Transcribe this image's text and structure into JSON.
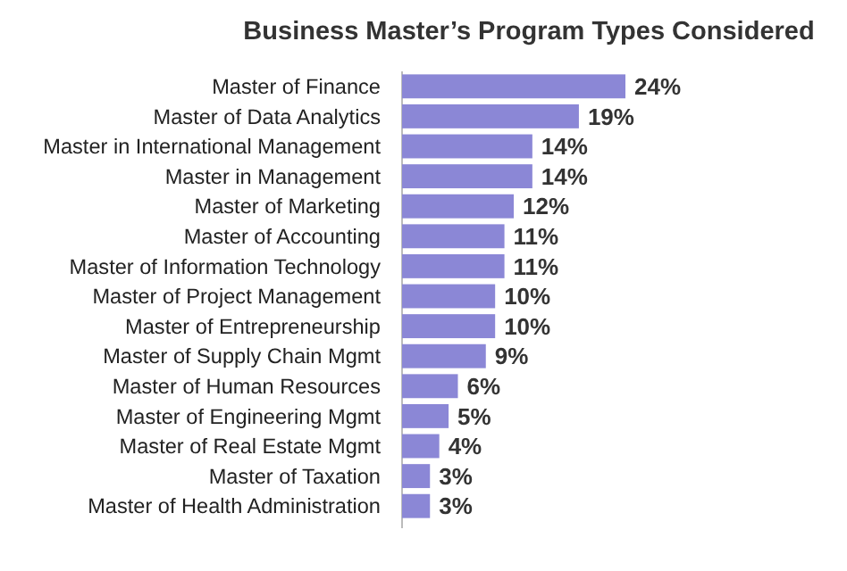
{
  "chart_data": {
    "type": "bar",
    "orientation": "horizontal",
    "title": "Business Master’s Program Types Considered",
    "categories": [
      "Master of Finance",
      "Master of Data Analytics",
      "Master in International Management",
      "Master in Management",
      "Master of Marketing",
      "Master of Accounting",
      "Master of Information Technology",
      "Master of Project Management",
      "Master of Entrepreneurship",
      "Master of Supply Chain Mgmt",
      "Master of Human Resources",
      "Master of Engineering Mgmt",
      "Master of Real Estate Mgmt",
      "Master of Taxation",
      "Master of Health Administration"
    ],
    "values": [
      24,
      19,
      14,
      14,
      12,
      11,
      11,
      10,
      10,
      9,
      6,
      5,
      4,
      3,
      3
    ],
    "value_labels": [
      "24%",
      "19%",
      "14%",
      "14%",
      "12%",
      "11%",
      "11%",
      "10%",
      "10%",
      "9%",
      "6%",
      "5%",
      "4%",
      "3%",
      "3%"
    ],
    "color": "#8b87d6"
  }
}
